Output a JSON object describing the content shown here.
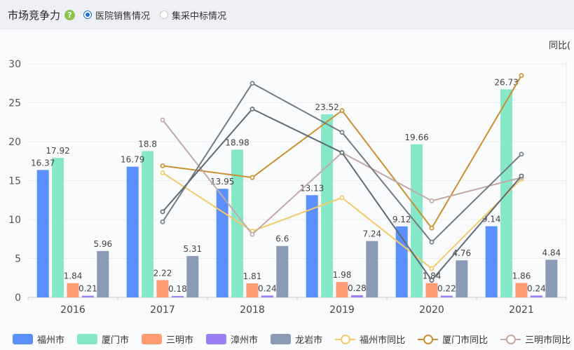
{
  "header": {
    "title": "市场竞争力",
    "help_icon": "?",
    "options": [
      {
        "label": "医院销售情况",
        "checked": true
      },
      {
        "label": "集采中标情况",
        "checked": false
      }
    ]
  },
  "chart_data": {
    "type": "bar",
    "categories": [
      "2016",
      "2017",
      "2018",
      "2019",
      "2020",
      "2021"
    ],
    "ylim": [
      0,
      30
    ],
    "yticks": [
      "0",
      "5",
      "10",
      "15",
      "20",
      "25",
      "30"
    ],
    "right_axis_label": "同比(",
    "grid": true,
    "legend_position": "bottom",
    "series": [
      {
        "name": "福州市",
        "color": "#5b8ff9",
        "values": [
          16.37,
          16.79,
          13.95,
          13.13,
          9.12,
          9.14
        ],
        "labels": [
          "16.37",
          "16.79",
          "13.95",
          "13.13",
          "9.12",
          "9.14"
        ]
      },
      {
        "name": "厦门市",
        "color": "#86e8c9",
        "values": [
          17.92,
          18.8,
          18.98,
          23.52,
          19.66,
          26.73
        ],
        "labels": [
          "17.92",
          "18.8",
          "18.98",
          "23.52",
          "19.66",
          "26.73"
        ]
      },
      {
        "name": "三明市",
        "color": "#ff9b73",
        "values": [
          1.84,
          2.22,
          1.81,
          1.98,
          1.84,
          1.86
        ],
        "labels": [
          "1.84",
          "2.22",
          "1.81",
          "1.98",
          "1.84",
          "1.86"
        ]
      },
      {
        "name": "漳州市",
        "color": "#9a7ff5",
        "values": [
          0.21,
          0.18,
          0.24,
          0.28,
          0.22,
          0.24
        ],
        "labels": [
          "0.21",
          "0.18",
          "0.24",
          "0.28",
          "0.22",
          "0.24"
        ]
      },
      {
        "name": "龙岩市",
        "color": "#8a9bb5",
        "values": [
          5.96,
          5.31,
          6.6,
          7.24,
          4.76,
          4.84
        ],
        "labels": [
          "5.96",
          "5.31",
          "6.6",
          "7.24",
          "4.76",
          "4.84"
        ]
      }
    ],
    "line_series": [
      {
        "name": "福州市同比",
        "color": "#f5c96a",
        "values": [
          null,
          16.0,
          8.5,
          12.8,
          3.7,
          15.2
        ]
      },
      {
        "name": "厦门市同比",
        "color": "#c98f2f",
        "values": [
          null,
          16.9,
          15.4,
          24.0,
          8.9,
          28.5
        ]
      },
      {
        "name": "三明市同比",
        "color": "#c2a8a3",
        "values": [
          null,
          22.8,
          8.1,
          18.6,
          12.4,
          15.4
        ]
      },
      {
        "name": "",
        "color": "#737b80",
        "values": [
          null,
          9.7,
          27.5,
          21.2,
          7.1,
          18.4
        ]
      },
      {
        "name": "",
        "color": "#5e6a76",
        "values": [
          null,
          11.0,
          24.2,
          18.6,
          2.2,
          15.6
        ]
      }
    ]
  }
}
